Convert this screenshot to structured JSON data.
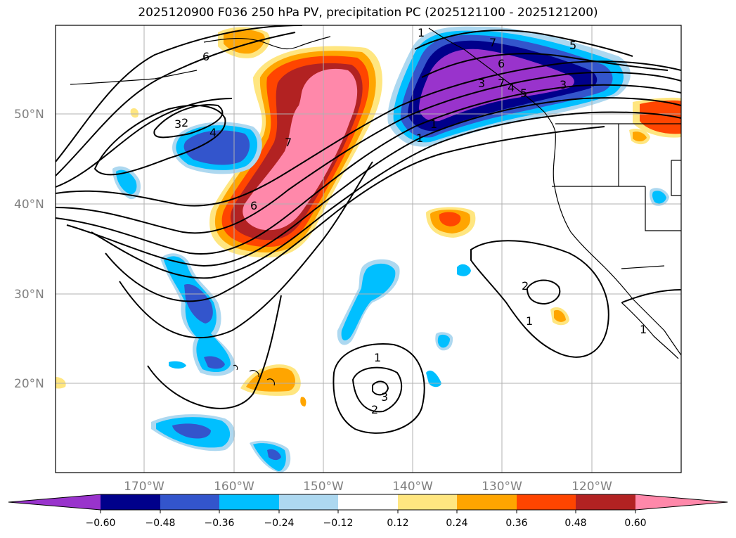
{
  "title": "2025120900 F036 250 hPa PV, precipitation PC (2025121100 - 2025121200)",
  "map": {
    "lat_labels": [
      "50°N",
      "40°N",
      "30°N",
      "20°N"
    ],
    "lon_labels": [
      "170°W",
      "160°W",
      "150°W",
      "140°W",
      "130°W",
      "120°W"
    ],
    "gridlines": true
  },
  "colorbar": {
    "ticks": [
      "−0.60",
      "−0.48",
      "−0.36",
      "−0.24",
      "−0.12",
      "0.12",
      "0.24",
      "0.36",
      "0.48",
      "0.60"
    ],
    "colors": [
      "#9933cc",
      "#00008b",
      "#3355cc",
      "#00bfff",
      "#add8f0",
      "#ffffff",
      "#ffe680",
      "#ffa500",
      "#ff4500",
      "#b22222",
      "#ff88aa"
    ],
    "extend": "both"
  },
  "contour_labels": [
    "6",
    "7",
    "3",
    "4",
    "7",
    "6",
    "1",
    "5",
    "3",
    "4",
    "3",
    "5",
    "6",
    "7",
    "1",
    "1",
    "2",
    "1",
    "1",
    "2",
    "3",
    "2",
    "1"
  ],
  "colors": {
    "purple": "#9933cc",
    "navy": "#00008b",
    "royal": "#3355cc",
    "cyan": "#00bfff",
    "light_blue": "#add8f0",
    "yellow": "#ffe680",
    "orange": "#ffa500",
    "red_orange": "#ff4500",
    "dark_red": "#b22222",
    "pink": "#ff88aa"
  }
}
